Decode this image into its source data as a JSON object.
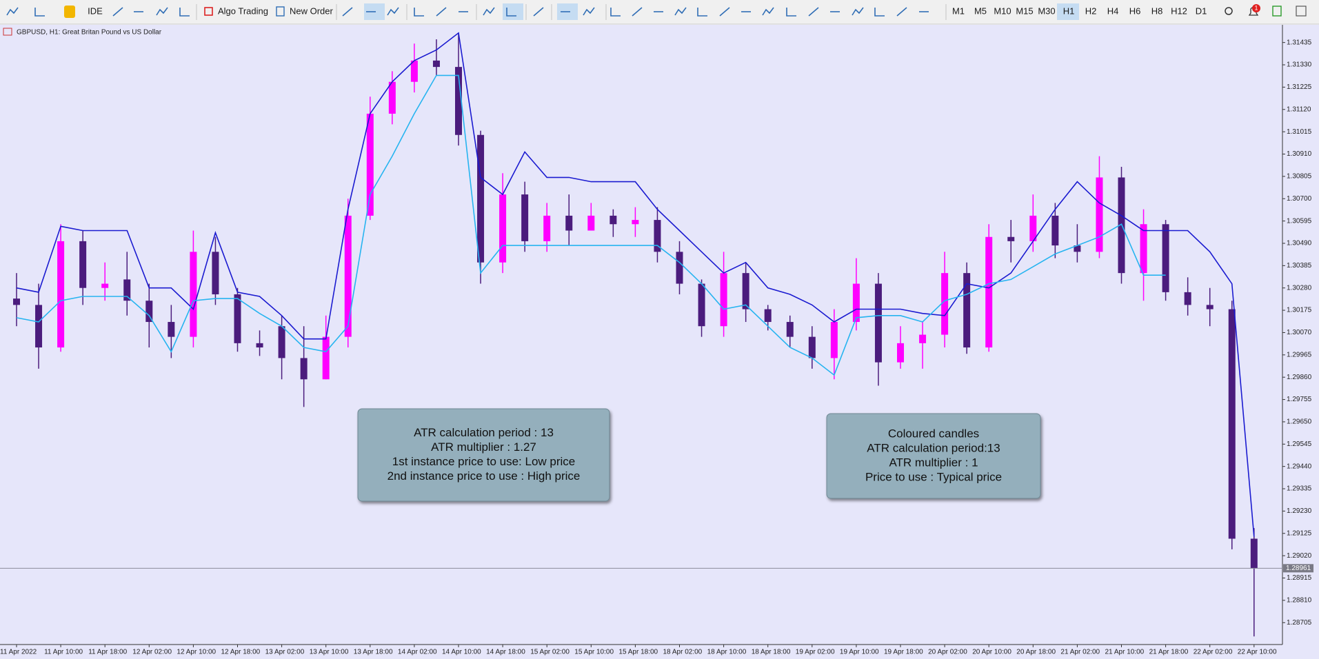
{
  "toolbar": {
    "ide": "IDE",
    "algo_trading": "Algo Trading",
    "new_order": "New Order",
    "timeframes": [
      "M1",
      "M5",
      "M10",
      "M15",
      "M30",
      "H1",
      "H2",
      "H4",
      "H6",
      "H8",
      "H12",
      "D1"
    ],
    "notification_count": 1
  },
  "chart_data": {
    "type": "candlestick",
    "title": "GBPUSD, H1:  Great Britan Pound vs US Dollar",
    "categories": [
      "11 Apr 2022",
      null,
      "11 Apr 10:00",
      null,
      "11 Apr 18:00",
      null,
      "12 Apr 02:00",
      null,
      "12 Apr 10:00",
      null,
      "12 Apr 18:00",
      null,
      "13 Apr 02:00",
      null,
      "13 Apr 10:00",
      null,
      "13 Apr 18:00",
      null,
      "14 Apr 02:00",
      null,
      "14 Apr 10:00",
      null,
      "14 Apr 18:00",
      null,
      "15 Apr 02:00",
      null,
      "15 Apr 10:00",
      null,
      "15 Apr 18:00",
      null,
      "18 Apr 02:00",
      null,
      "18 Apr 10:00",
      null,
      "18 Apr 18:00",
      null,
      "19 Apr 02:00",
      null,
      "19 Apr 10:00",
      null,
      "19 Apr 18:00",
      null,
      "20 Apr 02:00",
      null,
      "20 Apr 10:00",
      null,
      "20 Apr 18:00",
      null,
      "21 Apr 02:00",
      null,
      "21 Apr 10:00",
      null,
      "21 Apr 18:00",
      null,
      "22 Apr 02:00",
      null,
      "22 Apr 10:00"
    ],
    "open": [
      1.3023,
      1.302,
      1.3,
      1.305,
      1.3028,
      1.3032,
      1.3022,
      1.3012,
      1.3005,
      1.3045,
      1.3025,
      1.3002,
      1.301,
      1.2995,
      1.2985,
      1.3005,
      1.3062,
      1.311,
      1.3125,
      1.3135,
      1.3132,
      1.31,
      1.304,
      1.3072,
      1.305,
      1.3062,
      1.3055,
      1.3062,
      1.3058,
      1.306,
      1.3045,
      1.303,
      1.301,
      1.3035,
      1.3018,
      1.3012,
      1.3005,
      1.2995,
      1.3012,
      1.303,
      1.2993,
      1.3002,
      1.3006,
      1.3035,
      1.3,
      1.3052,
      1.305,
      1.3062,
      1.3048,
      1.3045,
      1.308,
      1.3035,
      1.3058,
      1.3026,
      1.302,
      1.3018,
      1.291
    ],
    "high": [
      1.3035,
      1.303,
      1.3058,
      1.3055,
      1.304,
      1.3045,
      1.303,
      1.302,
      1.3055,
      1.3052,
      1.3028,
      1.3008,
      1.3015,
      1.301,
      1.3015,
      1.307,
      1.3118,
      1.313,
      1.3143,
      1.3145,
      1.3148,
      1.3102,
      1.3082,
      1.3078,
      1.3068,
      1.3072,
      1.3068,
      1.3065,
      1.3066,
      1.3066,
      1.305,
      1.3032,
      1.3045,
      1.304,
      1.302,
      1.3015,
      1.301,
      1.3018,
      1.3042,
      1.3035,
      1.301,
      1.3012,
      1.3045,
      1.304,
      1.3058,
      1.306,
      1.3072,
      1.3068,
      1.3058,
      1.309,
      1.3085,
      1.3065,
      1.306,
      1.3033,
      1.3028,
      1.3022,
      1.2915
    ],
    "low": [
      1.301,
      1.299,
      1.2998,
      1.302,
      1.3022,
      1.3015,
      1.3,
      1.2995,
      1.3,
      1.302,
      1.2998,
      1.2996,
      1.2985,
      1.2972,
      1.2985,
      1.3,
      1.306,
      1.3105,
      1.312,
      1.3128,
      1.3095,
      1.303,
      1.3035,
      1.3045,
      1.3045,
      1.3048,
      1.3055,
      1.3052,
      1.3052,
      1.304,
      1.3025,
      1.3005,
      1.3005,
      1.3012,
      1.3008,
      1.3,
      1.299,
      1.2985,
      1.3008,
      1.2982,
      1.299,
      1.299,
      1.3,
      1.2997,
      1.2998,
      1.304,
      1.3045,
      1.3042,
      1.304,
      1.3042,
      1.303,
      1.3022,
      1.3022,
      1.3015,
      1.301,
      1.2905,
      1.2864
    ],
    "close": [
      1.302,
      1.3,
      1.305,
      1.3028,
      1.303,
      1.3022,
      1.3012,
      1.3005,
      1.3045,
      1.3025,
      1.3002,
      1.3,
      1.2995,
      1.2985,
      1.3005,
      1.3062,
      1.311,
      1.3125,
      1.3135,
      1.3132,
      1.31,
      1.304,
      1.3072,
      1.305,
      1.3062,
      1.3055,
      1.3062,
      1.3058,
      1.306,
      1.3045,
      1.303,
      1.301,
      1.3035,
      1.3018,
      1.3012,
      1.3005,
      1.2995,
      1.3012,
      1.303,
      1.2993,
      1.3002,
      1.3006,
      1.3035,
      1.3,
      1.3052,
      1.305,
      1.3062,
      1.3048,
      1.3045,
      1.308,
      1.3035,
      1.3058,
      1.3026,
      1.302,
      1.3018,
      1.291,
      1.28961
    ],
    "up_color": "#ff00ff",
    "down_color": "#4b1c7d",
    "series": [
      {
        "color": "#1a1ad0",
        "values": [
          1.3028,
          1.3026,
          1.3057,
          1.3055,
          1.3055,
          1.3055,
          1.3028,
          1.3028,
          1.3018,
          1.3054,
          1.3026,
          1.3024,
          1.3015,
          1.3004,
          1.3004,
          1.3065,
          1.311,
          1.3125,
          1.3135,
          1.314,
          1.3148,
          1.308,
          1.3072,
          1.3092,
          1.308,
          1.308,
          1.3078,
          1.3078,
          1.3078,
          1.3065,
          1.3055,
          1.3045,
          1.3035,
          1.304,
          1.3028,
          1.3025,
          1.302,
          1.3012,
          1.3018,
          1.3018,
          1.3018,
          1.3016,
          1.3015,
          1.303,
          1.3028,
          1.3035,
          1.305,
          1.3065,
          1.3078,
          1.3068,
          1.3062,
          1.3055,
          1.3055,
          1.3055,
          1.3045,
          1.303,
          1.2911
        ]
      },
      {
        "color": "#26b4f0",
        "values": [
          1.3014,
          1.3012,
          1.3022,
          1.3024,
          1.3024,
          1.3024,
          1.3015,
          1.2998,
          1.3022,
          1.3023,
          1.3023,
          1.3016,
          1.301,
          1.3,
          1.2998,
          1.301,
          1.3072,
          1.309,
          1.311,
          1.3128,
          1.3128,
          1.3035,
          1.3048,
          1.3048,
          1.3048,
          1.3048,
          1.3048,
          1.3048,
          1.3048,
          1.3048,
          1.304,
          1.303,
          1.3018,
          1.302,
          1.301,
          1.3,
          1.2995,
          1.2987,
          1.3014,
          1.3015,
          1.3015,
          1.3012,
          1.3022,
          1.3025,
          1.303,
          1.3032,
          1.3038,
          1.3044,
          1.3048,
          1.3052,
          1.3058,
          1.3034,
          1.3034,
          null,
          null,
          null,
          null
        ]
      }
    ],
    "ylim": [
      1.28602,
      1.31515
    ],
    "yticks": [
      1.31435,
      {
        "value": 1.3133,
        "label": "1.31330"
      },
      1.31225,
      {
        "value": 1.3112,
        "label": "1.31120"
      },
      1.31015,
      {
        "value": 1.3091,
        "label": "1.30910"
      },
      1.30805,
      {
        "value": 1.307,
        "label": "1.30700"
      },
      1.30595,
      {
        "value": 1.3049,
        "label": "1.30490"
      },
      1.30385,
      {
        "value": 1.3028,
        "label": "1.30280"
      },
      1.30175,
      {
        "value": 1.3007,
        "label": "1.30070"
      },
      1.29965,
      {
        "value": 1.2986,
        "label": "1.29860"
      },
      1.29755,
      {
        "value": 1.2965,
        "label": "1.29650"
      },
      1.29545,
      {
        "value": 1.2944,
        "label": "1.29440"
      },
      1.29335,
      {
        "value": 1.2923,
        "label": "1.29230"
      },
      1.29125,
      {
        "value": 1.2902,
        "label": "1.29020"
      },
      1.28915,
      {
        "value": 1.2881,
        "label": "1.28810"
      },
      1.28705
    ],
    "current_price": 1.28961,
    "annotations": [
      {
        "lines": [
          "ATR calculation period : 13",
          "ATR multiplier : 1.27",
          "1st instance price to use: Low price",
          "2nd instance price to use : High price"
        ]
      },
      {
        "lines": [
          "Coloured candles",
          "ATR calculation period:13",
          "ATR multiplier : 1",
          "Price to use : Typical price"
        ]
      }
    ]
  }
}
